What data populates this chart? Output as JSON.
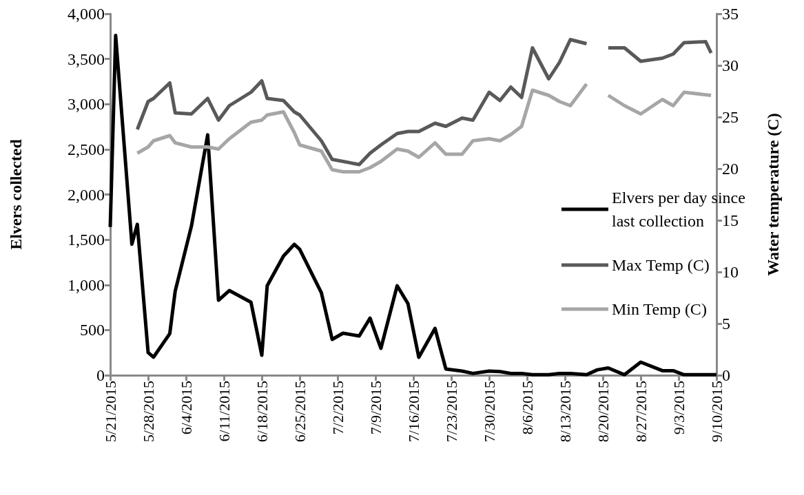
{
  "chart_data": {
    "type": "line",
    "xlabel": null,
    "ylabel": "Elvers collected",
    "y2label": "Water temperature (C)",
    "x": [
      "2015-05-21",
      "2015-05-22",
      "2015-05-25",
      "2015-05-26",
      "2015-05-28",
      "2015-05-29",
      "2015-06-01",
      "2015-06-02",
      "2015-06-05",
      "2015-06-08",
      "2015-06-10",
      "2015-06-12",
      "2015-06-16",
      "2015-06-18",
      "2015-06-19",
      "2015-06-22",
      "2015-06-24",
      "2015-06-25",
      "2015-06-29",
      "2015-07-01",
      "2015-07-03",
      "2015-07-06",
      "2015-07-08",
      "2015-07-10",
      "2015-07-13",
      "2015-07-15",
      "2015-07-17",
      "2015-07-20",
      "2015-07-22",
      "2015-07-25",
      "2015-07-27",
      "2015-07-30",
      "2015-08-01",
      "2015-08-03",
      "2015-08-05",
      "2015-08-07",
      "2015-08-10",
      "2015-08-12",
      "2015-08-14",
      "2015-08-17",
      "2015-08-19",
      "2015-08-21",
      "2015-08-24",
      "2015-08-27",
      "2015-08-31",
      "2015-09-02",
      "2015-09-04",
      "2015-09-09",
      "2015-09-10"
    ],
    "series": [
      {
        "name": "Elvers per day since last collection",
        "color": "#000000",
        "values": [
          1640,
          3760,
          1450,
          1670,
          250,
          200,
          460,
          930,
          1650,
          2660,
          830,
          937,
          808,
          221,
          990,
          1318,
          1448,
          1394,
          914,
          396,
          465,
          434,
          632,
          297,
          990,
          792,
          198,
          518,
          69,
          46,
          20,
          46,
          40,
          20,
          20,
          5,
          5,
          20,
          20,
          5,
          60,
          80,
          5,
          145,
          50,
          50,
          5,
          5,
          5
        ]
      },
      {
        "name": "Max Temp (C)",
        "color": "#595959",
        "axis": "y2",
        "x": [
          "2015-05-26",
          "2015-05-28",
          "2015-05-29",
          "2015-06-01",
          "2015-06-02",
          "2015-06-05",
          "2015-06-08",
          "2015-06-10",
          "2015-06-12",
          "2015-06-16",
          "2015-06-18",
          "2015-06-19",
          "2015-06-22",
          "2015-06-24",
          "2015-06-25",
          "2015-06-29",
          "2015-07-01",
          "2015-07-06",
          "2015-07-08",
          "2015-07-10",
          "2015-07-13",
          "2015-07-15",
          "2015-07-17",
          "2015-07-20",
          "2015-07-22",
          "2015-07-25",
          "2015-07-27",
          "2015-07-30",
          "2015-08-01",
          "2015-08-03",
          "2015-08-05",
          "2015-08-07",
          "2015-08-10",
          "2015-08-12",
          "2015-08-14",
          "2015-08-17",
          "2015-08-19",
          "2015-08-21",
          "2015-08-24",
          "2015-08-27",
          "2015-08-31",
          "2015-09-02",
          "2015-09-04",
          "2015-09-08",
          "2015-09-09"
        ],
        "values": [
          23.8,
          26.5,
          26.8,
          28.3,
          25.4,
          25.3,
          26.8,
          24.7,
          26.1,
          27.4,
          28.5,
          26.8,
          26.6,
          25.5,
          25.2,
          22.7,
          20.9,
          20.4,
          21.5,
          22.3,
          23.4,
          23.6,
          23.6,
          24.4,
          24.1,
          24.9,
          24.7,
          27.4,
          26.6,
          27.9,
          26.9,
          31.7,
          28.7,
          30.3,
          32.5,
          32.1,
          null,
          31.7,
          31.7,
          30.4,
          30.7,
          31.1,
          32.2,
          32.3,
          31.2
        ]
      },
      {
        "name": "Min Temp (C)",
        "color": "#a6a6a6",
        "axis": "y2",
        "x": [
          "2015-05-26",
          "2015-05-28",
          "2015-05-29",
          "2015-06-01",
          "2015-06-02",
          "2015-06-05",
          "2015-06-08",
          "2015-06-10",
          "2015-06-12",
          "2015-06-16",
          "2015-06-18",
          "2015-06-19",
          "2015-06-22",
          "2015-06-24",
          "2015-06-25",
          "2015-06-29",
          "2015-07-01",
          "2015-07-03",
          "2015-07-06",
          "2015-07-08",
          "2015-07-10",
          "2015-07-13",
          "2015-07-15",
          "2015-07-17",
          "2015-07-20",
          "2015-07-22",
          "2015-07-25",
          "2015-07-27",
          "2015-07-30",
          "2015-08-01",
          "2015-08-03",
          "2015-08-05",
          "2015-08-07",
          "2015-08-10",
          "2015-08-12",
          "2015-08-14",
          "2015-08-17",
          "2015-08-19",
          "2015-08-21",
          "2015-08-24",
          "2015-08-27",
          "2015-08-31",
          "2015-09-02",
          "2015-09-04",
          "2015-09-09"
        ],
        "values": [
          21.5,
          22.1,
          22.7,
          23.2,
          22.5,
          22.1,
          22.1,
          21.9,
          22.9,
          24.5,
          24.7,
          25.2,
          25.5,
          23.5,
          22.3,
          21.7,
          19.9,
          19.7,
          19.7,
          20.1,
          20.7,
          21.9,
          21.7,
          21.1,
          22.5,
          21.4,
          21.4,
          22.7,
          22.9,
          22.7,
          23.3,
          24.1,
          27.6,
          27.1,
          26.5,
          26.1,
          28.2,
          null,
          27.1,
          26.1,
          25.3,
          26.7,
          26.1,
          27.4,
          27.1
        ]
      }
    ],
    "xlim": [
      "2015-05-21",
      "2015-09-10"
    ],
    "xticks": [
      {
        "value": "2015-05-21",
        "label": "5/21/2015"
      },
      {
        "value": "2015-05-28",
        "label": "5/28/2015"
      },
      {
        "value": "2015-06-04",
        "label": "6/4/2015"
      },
      {
        "value": "2015-06-11",
        "label": "6/11/2015"
      },
      {
        "value": "2015-06-18",
        "label": "6/18/2015"
      },
      {
        "value": "2015-06-25",
        "label": "6/25/2015"
      },
      {
        "value": "2015-07-02",
        "label": "7/2/2015"
      },
      {
        "value": "2015-07-09",
        "label": "7/9/2015"
      },
      {
        "value": "2015-07-16",
        "label": "7/16/2015"
      },
      {
        "value": "2015-07-23",
        "label": "7/23/2015"
      },
      {
        "value": "2015-07-30",
        "label": "7/30/2015"
      },
      {
        "value": "2015-08-06",
        "label": "8/6/2015"
      },
      {
        "value": "2015-08-13",
        "label": "8/13/2015"
      },
      {
        "value": "2015-08-20",
        "label": "8/20/2015"
      },
      {
        "value": "2015-08-27",
        "label": "8/27/2015"
      },
      {
        "value": "2015-09-03",
        "label": "9/3/2015"
      },
      {
        "value": "2015-09-10",
        "label": "9/10/2015"
      }
    ],
    "ylim": [
      0,
      4000
    ],
    "yticks": [
      0,
      500,
      {
        "value": 1000,
        "label": "1,000"
      },
      {
        "value": 1500,
        "label": "1,500"
      },
      {
        "value": 2000,
        "label": "2,000"
      },
      {
        "value": 2500,
        "label": "2,500"
      },
      {
        "value": 3000,
        "label": "3,000"
      },
      {
        "value": 3500,
        "label": "3,500"
      },
      {
        "value": 4000,
        "label": "4,000"
      }
    ],
    "y2lim": [
      0,
      35
    ],
    "y2ticks": [
      0,
      5,
      10,
      15,
      20,
      25,
      30,
      35
    ],
    "grid": false,
    "legend": "right",
    "marker": "none",
    "line_style": "solid"
  }
}
